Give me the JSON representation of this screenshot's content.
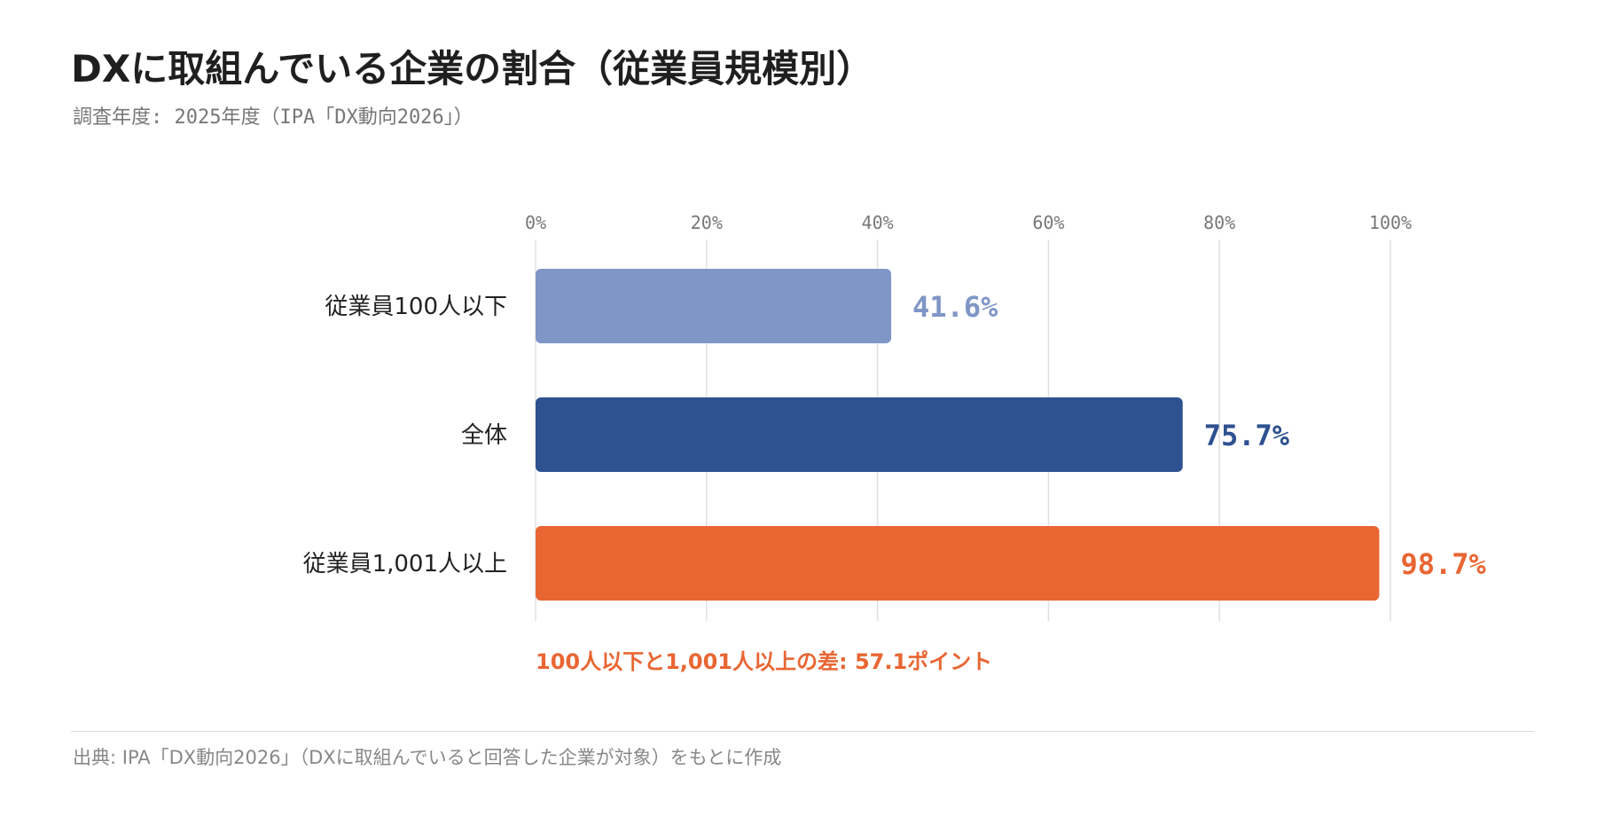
{
  "title": "DXに取組んでいる企業の割合（従業員規模別）",
  "subtitle": "調査年度: 2025年度（IPA「DX動向2026」）",
  "chart_data": {
    "type": "bar",
    "orientation": "horizontal",
    "categories": [
      "従業員100人以下",
      "全体",
      "従業員1,001人以上"
    ],
    "values": [
      41.6,
      75.7,
      98.7
    ],
    "value_labels": [
      "41.6%",
      "75.7%",
      "98.7%"
    ],
    "bar_colors": [
      "#7f96c6",
      "#2e518f",
      "#e96633"
    ],
    "xlim": [
      0,
      100
    ],
    "x_ticks": [
      0,
      20,
      40,
      60,
      80,
      100
    ],
    "x_tick_labels": [
      "0%",
      "20%",
      "40%",
      "60%",
      "80%",
      "100%"
    ],
    "x_axis_position": "top",
    "grid": true
  },
  "gap_note": "100人以下と1,001人以上の差: 57.1ポイント",
  "source": "出典: IPA「DX動向2026」（DXに取組んでいると回答した企業が対象）をもとに作成"
}
